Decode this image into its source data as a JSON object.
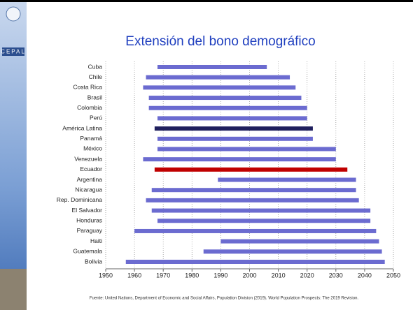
{
  "logo_text": "CEPAL",
  "chart_data": {
    "type": "range_bar",
    "title": "Extensión del bono demográfico",
    "categories": [
      "Cuba",
      "Chile",
      "Costa Rica",
      "Brasil",
      "Colombia",
      "Perú",
      "América Latina",
      "Panamá",
      "México",
      "Venezuela",
      "Ecuador",
      "Argentina",
      "Nicaragua",
      "Rep. Dominicana",
      "El Salvador",
      "Honduras",
      "Paraguay",
      "Haiti",
      "Guatemala",
      "Bolivia"
    ],
    "start": [
      1968,
      1964,
      1963,
      1965,
      1965,
      1968,
      1967,
      1968,
      1968,
      1963,
      1967,
      1989,
      1966,
      1964,
      1966,
      1968,
      1960,
      1990,
      1984,
      1957
    ],
    "end": [
      2006,
      2014,
      2016,
      2018,
      2020,
      2020,
      2022,
      2022,
      2030,
      2030,
      2034,
      2037,
      2037,
      2038,
      2042,
      2042,
      2044,
      2045,
      2046,
      2047
    ],
    "colors": [
      "#6b6bd0",
      "#6b6bd0",
      "#6b6bd0",
      "#6b6bd0",
      "#6b6bd0",
      "#6b6bd0",
      "#1f1f5e",
      "#6b6bd0",
      "#6b6bd0",
      "#6b6bd0",
      "#c00000",
      "#6b6bd0",
      "#6b6bd0",
      "#6b6bd0",
      "#6b6bd0",
      "#6b6bd0",
      "#6b6bd0",
      "#6b6bd0",
      "#6b6bd0",
      "#6b6bd0"
    ],
    "xlim": [
      1950,
      2050
    ],
    "xticks": [
      1950,
      1960,
      1970,
      1980,
      1990,
      2000,
      2010,
      2020,
      2030,
      2040,
      2050
    ],
    "grid": true,
    "source": "Fuente: United Nations, Department of Economic and Social Affairs, Population Division (2019). World Population Prospects: The 2019 Revision."
  }
}
